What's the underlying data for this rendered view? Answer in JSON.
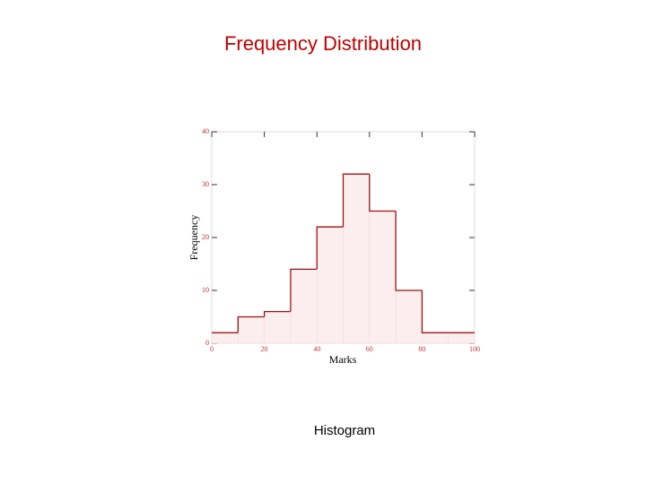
{
  "title": "Frequency Distribution",
  "caption": "Histogram",
  "chart_data": {
    "type": "histogram",
    "xlabel": "Marks",
    "ylabel": "Frequency",
    "bins": [
      0,
      10,
      20,
      30,
      40,
      50,
      60,
      70,
      80,
      90,
      100
    ],
    "counts": [
      2,
      5,
      6,
      14,
      22,
      32,
      25,
      10,
      2,
      2
    ],
    "color": "#a01010",
    "xlim": [
      0,
      100
    ],
    "ylim": [
      0,
      40
    ],
    "xticks": [
      0,
      20,
      40,
      60,
      80,
      100
    ],
    "yticks": [
      0,
      10,
      20,
      30,
      40
    ]
  }
}
